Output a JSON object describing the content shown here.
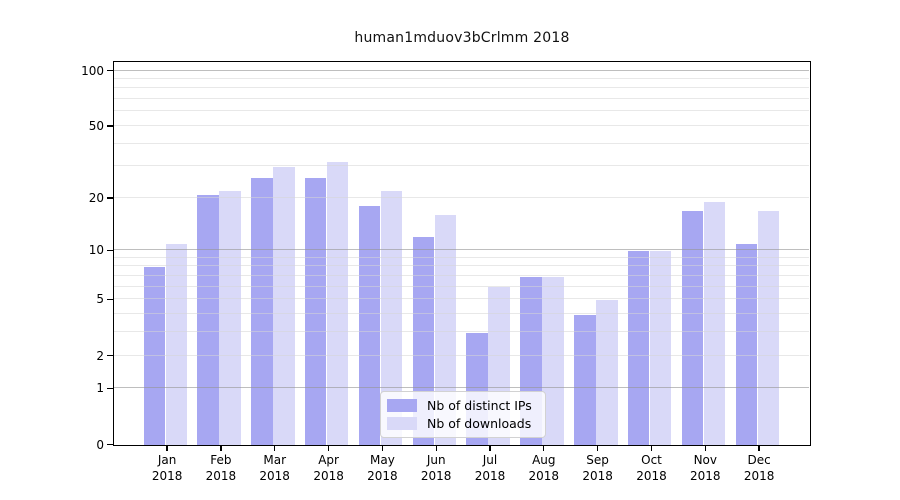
{
  "title": "human1mduov3bCrlmm 2018",
  "chart_data": {
    "type": "bar",
    "title": "human1mduov3bCrlmm 2018",
    "categories": [
      "Jan",
      "Feb",
      "Mar",
      "Apr",
      "May",
      "Jun",
      "Jul",
      "Aug",
      "Sep",
      "Oct",
      "Nov",
      "Dec"
    ],
    "category_year": "2018",
    "series": [
      {
        "name": "Nb of distinct IPs",
        "color": "#a7a7f2",
        "values": [
          8,
          21,
          26,
          26,
          18,
          12,
          3,
          7,
          4,
          10,
          17,
          11
        ]
      },
      {
        "name": "Nb of downloads",
        "color": "#d9d9f8",
        "values": [
          11,
          22,
          30,
          32,
          22,
          16,
          6,
          7,
          5,
          10,
          19,
          17
        ]
      }
    ],
    "yscale": "log1p",
    "ylim": [
      0,
      100
    ],
    "ytick_values": [
      0,
      1,
      2,
      5,
      10,
      20,
      50,
      100
    ],
    "ytick_labels": [
      "0",
      "1",
      "2",
      "5",
      "10",
      "20",
      "50",
      "100"
    ],
    "major_gridlines": [
      1,
      10,
      100
    ],
    "minor_gridlines": [
      2,
      3,
      4,
      5,
      6,
      7,
      8,
      9,
      20,
      30,
      40,
      50,
      60,
      70,
      80,
      90
    ],
    "grid": true,
    "legend_position": "bottom-center"
  },
  "style": {
    "spine_color": "#000000",
    "major_grid_color": "#c2c2c2",
    "minor_grid_color": "#ececec",
    "background": "#ffffff"
  }
}
